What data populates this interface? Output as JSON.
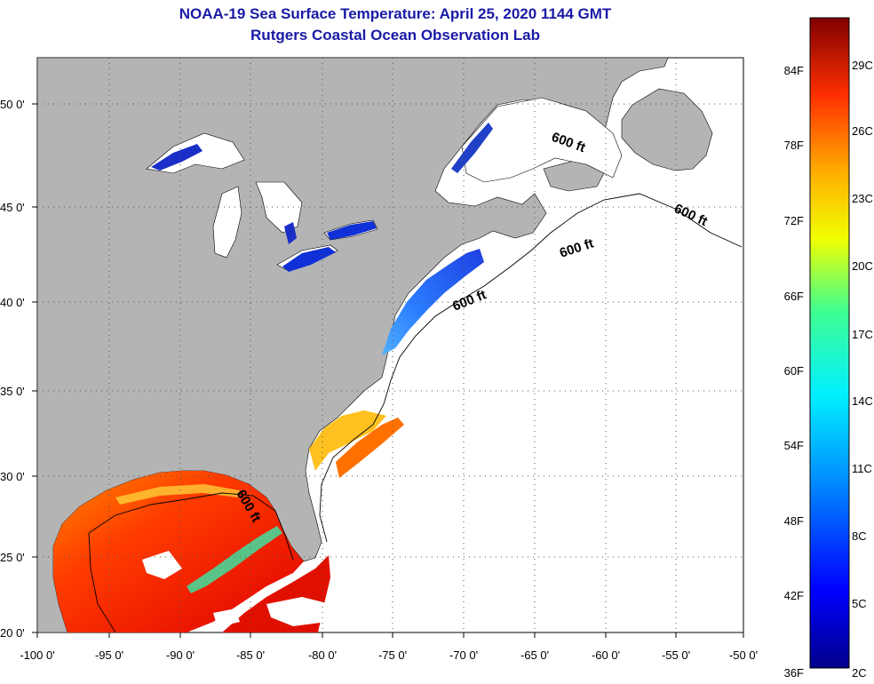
{
  "title_line1": "NOAA-19 Sea Surface Temperature:  April 25, 2020 1144 GMT",
  "title_line2": "Rutgers Coastal Ocean Observation Lab",
  "x_ticks": [
    "-100 0'",
    "-95 0'",
    "-90 0'",
    "-85 0'",
    "-80 0'",
    "-75 0'",
    "-70 0'",
    "-65 0'",
    "-60 0'",
    "-55 0'",
    "-50 0'"
  ],
  "y_ticks": [
    "50 0'",
    "45 0'",
    "40 0'",
    "35 0'",
    "30 0'",
    "25 0'",
    "20 0'"
  ],
  "contour_labels": [
    "600 ft",
    "600 ft",
    "600 ft",
    "600 ft",
    "600 ft"
  ],
  "colorbar": {
    "f_labels": [
      "84F",
      "78F",
      "72F",
      "66F",
      "60F",
      "54F",
      "48F",
      "42F",
      "36F"
    ],
    "c_labels": [
      "29C",
      "26C",
      "23C",
      "20C",
      "17C",
      "14C",
      "11C",
      "8C",
      "5C",
      "2C"
    ]
  },
  "colors": {
    "title": "#1a1aa6",
    "land": "#b4b4b4",
    "ocean_no_data": "#ffffff",
    "colorbar_cold": "#00008b",
    "colorbar_warm": "#800000"
  }
}
